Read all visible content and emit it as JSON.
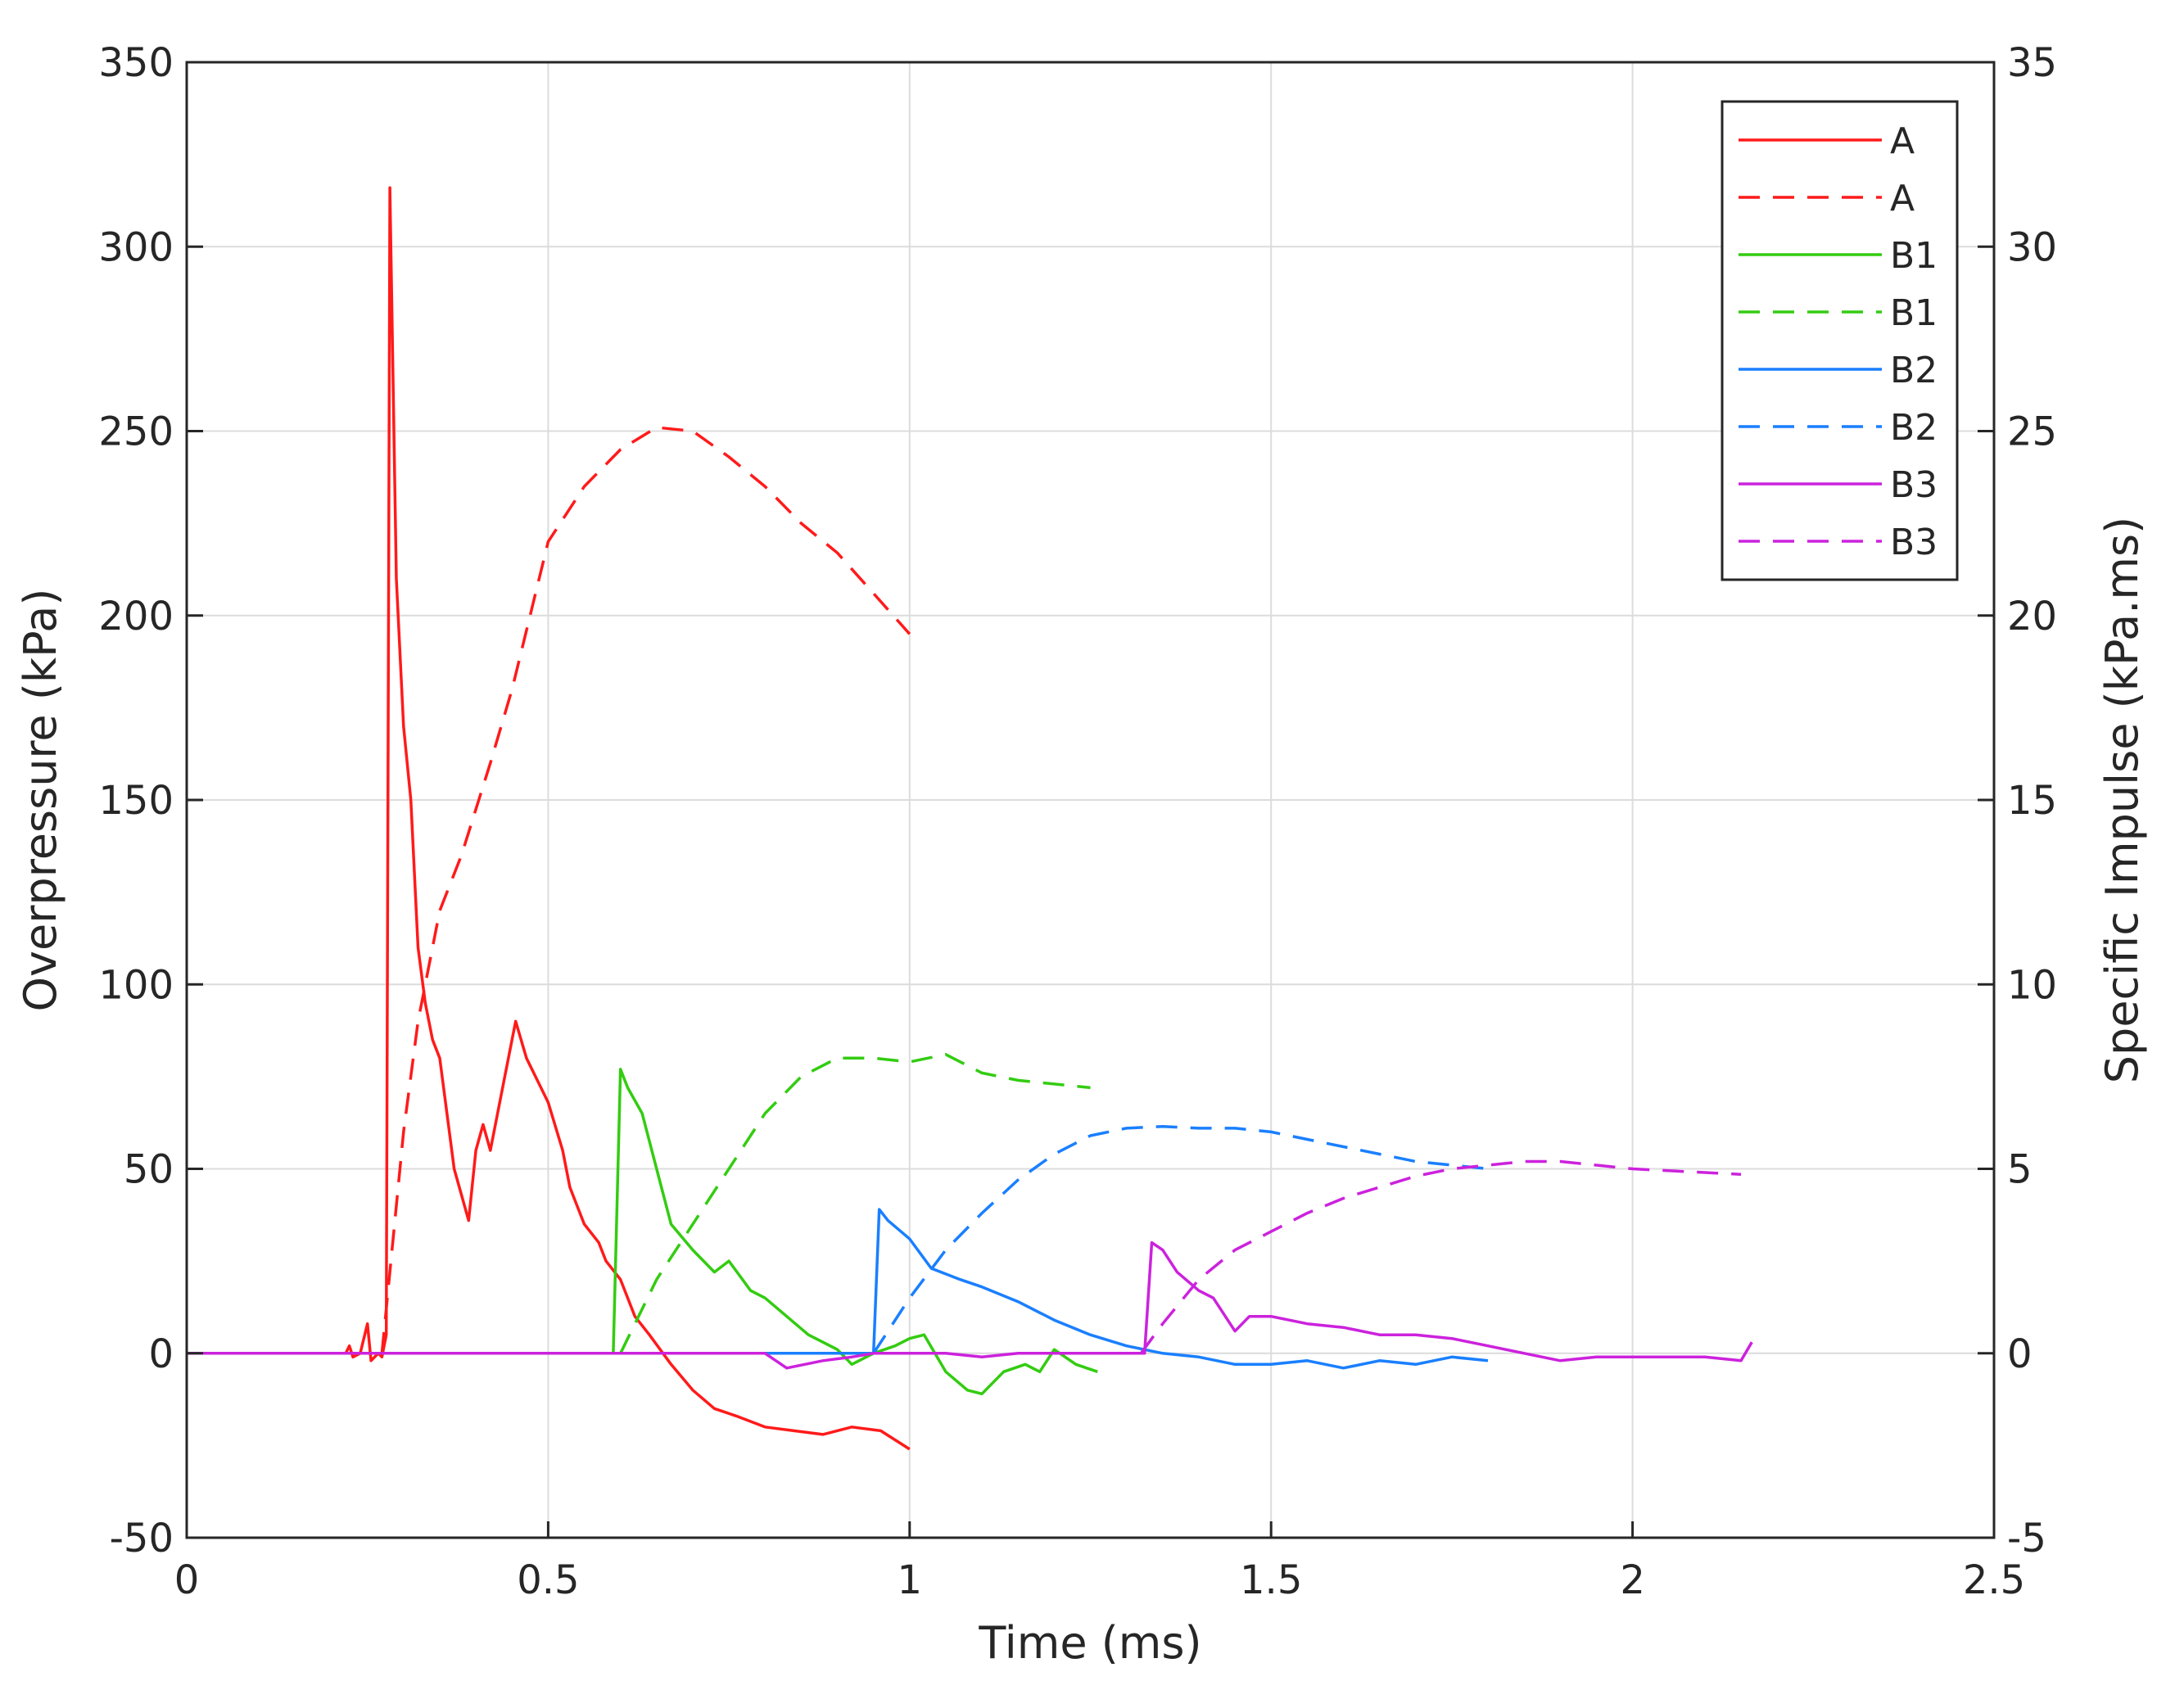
{
  "chart_data": {
    "type": "line",
    "title": "",
    "xlabel": "Time (ms)",
    "ylabel_left": "Overpressure (kPa)",
    "ylabel_right": "Specific Impulse (kPa.ms)",
    "xlim": [
      0,
      2.5
    ],
    "ylim_left": [
      -50,
      350
    ],
    "ylim_right": [
      -5,
      35
    ],
    "xticks": [
      "0",
      "0.5",
      "1",
      "1.5",
      "2",
      "2.5"
    ],
    "yticks_left": [
      "-50",
      "0",
      "50",
      "100",
      "150",
      "200",
      "250",
      "300",
      "350"
    ],
    "yticks_right": [
      "-5",
      "0",
      "5",
      "10",
      "15",
      "20",
      "25",
      "30",
      "35"
    ],
    "grid": true,
    "legend_position": "top-right",
    "colors": {
      "A": "#ff1a1a",
      "B1": "#33cc11",
      "B2": "#1a7fff",
      "B3": "#cc22dd"
    },
    "series": [
      {
        "name": "A",
        "axis": "left",
        "style": "solid",
        "color": "#ff1a1a",
        "points": [
          [
            0,
            0
          ],
          [
            0.22,
            0
          ],
          [
            0.225,
            2
          ],
          [
            0.23,
            -1
          ],
          [
            0.24,
            0
          ],
          [
            0.25,
            8
          ],
          [
            0.255,
            -2
          ],
          [
            0.265,
            0
          ],
          [
            0.27,
            -1
          ],
          [
            0.276,
            5
          ],
          [
            0.281,
            316
          ],
          [
            0.29,
            210
          ],
          [
            0.3,
            170
          ],
          [
            0.31,
            150
          ],
          [
            0.32,
            110
          ],
          [
            0.33,
            95
          ],
          [
            0.34,
            85
          ],
          [
            0.35,
            80
          ],
          [
            0.36,
            65
          ],
          [
            0.37,
            50
          ],
          [
            0.39,
            36
          ],
          [
            0.4,
            55
          ],
          [
            0.41,
            62
          ],
          [
            0.42,
            55
          ],
          [
            0.43,
            65
          ],
          [
            0.44,
            75
          ],
          [
            0.455,
            90
          ],
          [
            0.47,
            80
          ],
          [
            0.49,
            72
          ],
          [
            0.5,
            68
          ],
          [
            0.52,
            55
          ],
          [
            0.53,
            45
          ],
          [
            0.55,
            35
          ],
          [
            0.57,
            30
          ],
          [
            0.58,
            25
          ],
          [
            0.6,
            20
          ],
          [
            0.62,
            10
          ],
          [
            0.64,
            5
          ],
          [
            0.67,
            -3
          ],
          [
            0.7,
            -10
          ],
          [
            0.73,
            -15
          ],
          [
            0.76,
            -17
          ],
          [
            0.8,
            -20
          ],
          [
            0.84,
            -21
          ],
          [
            0.88,
            -22
          ],
          [
            0.92,
            -20
          ],
          [
            0.96,
            -21
          ],
          [
            1.0,
            -26
          ]
        ]
      },
      {
        "name": "A",
        "axis": "right",
        "style": "dashed",
        "color": "#ff1a1a",
        "points": [
          [
            0.27,
            0
          ],
          [
            0.3,
            6
          ],
          [
            0.32,
            9
          ],
          [
            0.35,
            12
          ],
          [
            0.38,
            13.5
          ],
          [
            0.42,
            16
          ],
          [
            0.45,
            18
          ],
          [
            0.5,
            22
          ],
          [
            0.55,
            23.5
          ],
          [
            0.6,
            24.5
          ],
          [
            0.65,
            25.1
          ],
          [
            0.7,
            25
          ],
          [
            0.75,
            24.3
          ],
          [
            0.8,
            23.5
          ],
          [
            0.85,
            22.5
          ],
          [
            0.9,
            21.7
          ],
          [
            0.95,
            20.6
          ],
          [
            1.0,
            19.5
          ]
        ]
      },
      {
        "name": "B1",
        "axis": "left",
        "style": "solid",
        "color": "#33cc11",
        "points": [
          [
            0,
            0
          ],
          [
            0.59,
            0
          ],
          [
            0.6,
            77
          ],
          [
            0.61,
            72
          ],
          [
            0.63,
            65
          ],
          [
            0.65,
            50
          ],
          [
            0.67,
            35
          ],
          [
            0.7,
            28
          ],
          [
            0.73,
            22
          ],
          [
            0.75,
            25
          ],
          [
            0.78,
            17
          ],
          [
            0.8,
            15
          ],
          [
            0.83,
            10
          ],
          [
            0.86,
            5
          ],
          [
            0.88,
            3
          ],
          [
            0.9,
            1
          ],
          [
            0.92,
            -3
          ],
          [
            0.95,
            0
          ],
          [
            0.98,
            2
          ],
          [
            1.0,
            4
          ],
          [
            1.02,
            5
          ],
          [
            1.05,
            -5
          ],
          [
            1.08,
            -10
          ],
          [
            1.1,
            -11
          ],
          [
            1.13,
            -5
          ],
          [
            1.16,
            -3
          ],
          [
            1.18,
            -5
          ],
          [
            1.2,
            1
          ],
          [
            1.23,
            -3
          ],
          [
            1.26,
            -5
          ]
        ]
      },
      {
        "name": "B1",
        "axis": "right",
        "style": "dashed",
        "color": "#33cc11",
        "points": [
          [
            0.6,
            0
          ],
          [
            0.65,
            2
          ],
          [
            0.7,
            3.5
          ],
          [
            0.75,
            5
          ],
          [
            0.8,
            6.5
          ],
          [
            0.85,
            7.5
          ],
          [
            0.9,
            8
          ],
          [
            0.95,
            8
          ],
          [
            1.0,
            7.9
          ],
          [
            1.05,
            8.1
          ],
          [
            1.1,
            7.6
          ],
          [
            1.15,
            7.4
          ],
          [
            1.2,
            7.3
          ],
          [
            1.25,
            7.2
          ]
        ]
      },
      {
        "name": "B2",
        "axis": "left",
        "style": "solid",
        "color": "#1a7fff",
        "points": [
          [
            0,
            0
          ],
          [
            0.95,
            0
          ],
          [
            0.958,
            39
          ],
          [
            0.97,
            36
          ],
          [
            1.0,
            31
          ],
          [
            1.03,
            23
          ],
          [
            1.07,
            20
          ],
          [
            1.1,
            18
          ],
          [
            1.15,
            14
          ],
          [
            1.2,
            9
          ],
          [
            1.25,
            5
          ],
          [
            1.3,
            2
          ],
          [
            1.35,
            0
          ],
          [
            1.4,
            -1
          ],
          [
            1.45,
            -3
          ],
          [
            1.5,
            -3
          ],
          [
            1.55,
            -2
          ],
          [
            1.6,
            -4
          ],
          [
            1.65,
            -2
          ],
          [
            1.7,
            -3
          ],
          [
            1.75,
            -1
          ],
          [
            1.8,
            -2
          ]
        ]
      },
      {
        "name": "B2",
        "axis": "right",
        "style": "dashed",
        "color": "#1a7fff",
        "points": [
          [
            0.95,
            0
          ],
          [
            1.0,
            1.5
          ],
          [
            1.05,
            2.8
          ],
          [
            1.1,
            3.8
          ],
          [
            1.15,
            4.7
          ],
          [
            1.2,
            5.4
          ],
          [
            1.25,
            5.9
          ],
          [
            1.3,
            6.1
          ],
          [
            1.35,
            6.15
          ],
          [
            1.4,
            6.1
          ],
          [
            1.45,
            6.1
          ],
          [
            1.5,
            6
          ],
          [
            1.55,
            5.8
          ],
          [
            1.6,
            5.6
          ],
          [
            1.65,
            5.4
          ],
          [
            1.7,
            5.2
          ],
          [
            1.75,
            5.1
          ],
          [
            1.8,
            5
          ]
        ]
      },
      {
        "name": "B3",
        "axis": "left",
        "style": "solid",
        "color": "#cc22dd",
        "points": [
          [
            0,
            0
          ],
          [
            0.8,
            0
          ],
          [
            0.83,
            -4
          ],
          [
            0.88,
            -2
          ],
          [
            0.92,
            -1
          ],
          [
            0.95,
            0
          ],
          [
            1.0,
            0
          ],
          [
            1.05,
            0
          ],
          [
            1.1,
            -1
          ],
          [
            1.15,
            0
          ],
          [
            1.2,
            0
          ],
          [
            1.25,
            0
          ],
          [
            1.3,
            0
          ],
          [
            1.325,
            0
          ],
          [
            1.335,
            30
          ],
          [
            1.35,
            28
          ],
          [
            1.37,
            22
          ],
          [
            1.4,
            17
          ],
          [
            1.42,
            15
          ],
          [
            1.45,
            6
          ],
          [
            1.47,
            10
          ],
          [
            1.5,
            10
          ],
          [
            1.55,
            8
          ],
          [
            1.6,
            7
          ],
          [
            1.65,
            5
          ],
          [
            1.7,
            5
          ],
          [
            1.75,
            4
          ],
          [
            1.8,
            2
          ],
          [
            1.85,
            0
          ],
          [
            1.9,
            -2
          ],
          [
            1.95,
            -1
          ],
          [
            2.0,
            -1
          ],
          [
            2.05,
            -1
          ],
          [
            2.1,
            -1
          ],
          [
            2.15,
            -2
          ],
          [
            2.165,
            3
          ]
        ]
      },
      {
        "name": "B3",
        "axis": "right",
        "style": "dashed",
        "color": "#cc22dd",
        "points": [
          [
            1.32,
            0
          ],
          [
            1.35,
            0.8
          ],
          [
            1.4,
            2
          ],
          [
            1.45,
            2.8
          ],
          [
            1.5,
            3.3
          ],
          [
            1.55,
            3.8
          ],
          [
            1.6,
            4.2
          ],
          [
            1.65,
            4.5
          ],
          [
            1.7,
            4.8
          ],
          [
            1.75,
            5
          ],
          [
            1.8,
            5.1
          ],
          [
            1.85,
            5.2
          ],
          [
            1.9,
            5.2
          ],
          [
            1.95,
            5.1
          ],
          [
            2.0,
            5
          ],
          [
            2.05,
            4.95
          ],
          [
            2.1,
            4.9
          ],
          [
            2.15,
            4.85
          ]
        ]
      }
    ]
  }
}
